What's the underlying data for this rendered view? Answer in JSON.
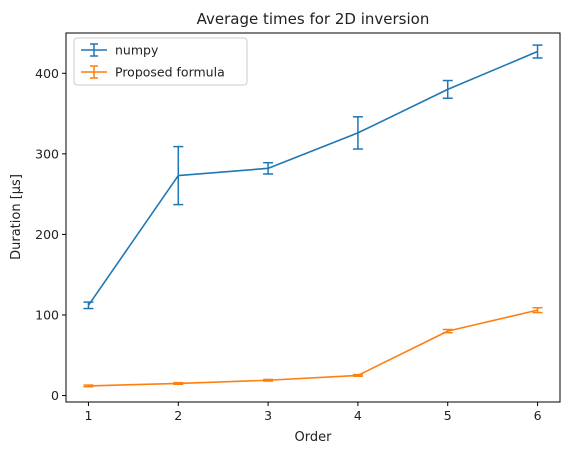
{
  "chart_data": {
    "type": "line",
    "title": "Average times for 2D inversion",
    "xlabel": "Order",
    "ylabel": "Duration [µs]",
    "x": [
      1,
      2,
      3,
      4,
      5,
      6
    ],
    "xlim": [
      0.75,
      6.25
    ],
    "ylim": [
      -8,
      450
    ],
    "xticks": [
      1,
      2,
      3,
      4,
      5,
      6
    ],
    "yticks": [
      0,
      100,
      200,
      300,
      400
    ],
    "grid": false,
    "legend_position": "top-left",
    "series": [
      {
        "name": "numpy",
        "color": "#1f77b4",
        "values": [
          112,
          273,
          282,
          326,
          380,
          427
        ],
        "errors": [
          4,
          36,
          7,
          20,
          11,
          8
        ]
      },
      {
        "name": "Proposed formula",
        "color": "#ff7f0e",
        "values": [
          12,
          15,
          19,
          25,
          80,
          106
        ],
        "errors": [
          1,
          1,
          1,
          1,
          2,
          3
        ]
      }
    ]
  }
}
